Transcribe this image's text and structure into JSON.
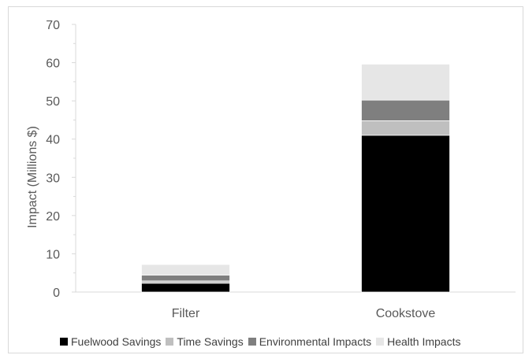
{
  "chart_data": {
    "type": "bar",
    "stacked": true,
    "categories": [
      "Filter",
      "Cookstove"
    ],
    "series": [
      {
        "name": "Fuelwood Savings",
        "values": [
          2.3,
          41.0
        ],
        "color": "#000000"
      },
      {
        "name": "Time Savings",
        "values": [
          0.6,
          3.8
        ],
        "color": "#bfbfbf"
      },
      {
        "name": "Environmental Impacts",
        "values": [
          1.5,
          5.4
        ],
        "color": "#7f7f7f"
      },
      {
        "name": "Health Impacts",
        "values": [
          2.8,
          9.4
        ],
        "color": "#e6e6e6"
      }
    ],
    "ylabel": "Impact (Millions $)",
    "xlabel": "",
    "ylim": [
      0,
      70
    ],
    "yticks": [
      0,
      10,
      20,
      30,
      40,
      50,
      60,
      70
    ],
    "grid": false,
    "legend_position": "bottom"
  }
}
